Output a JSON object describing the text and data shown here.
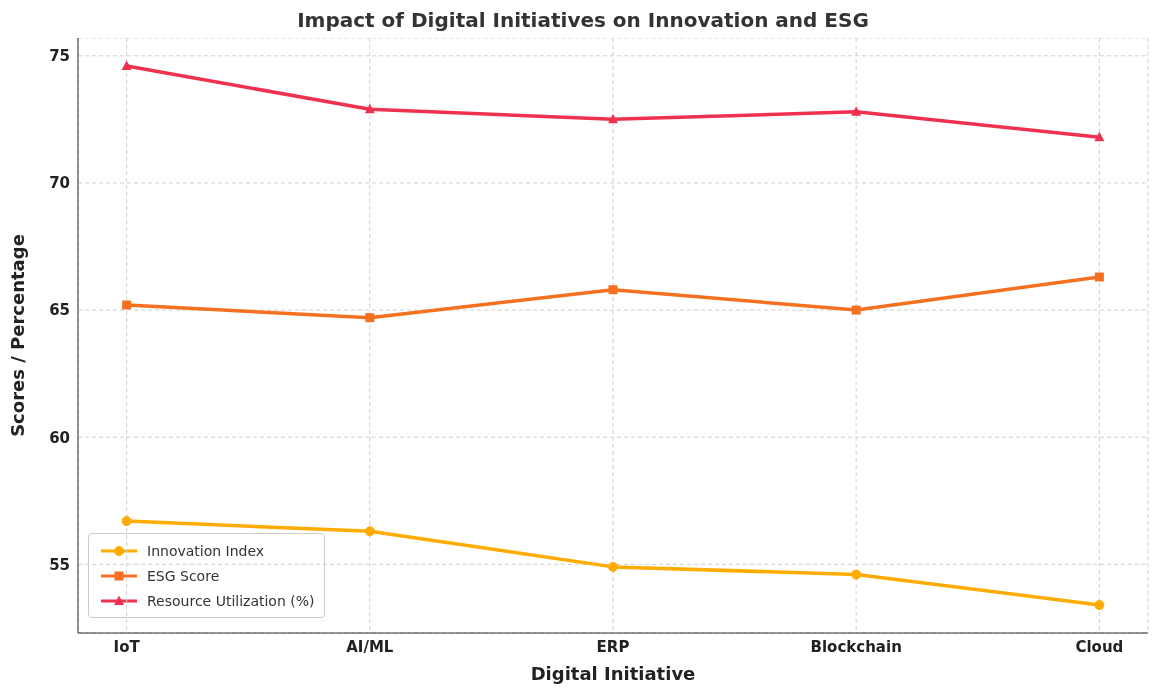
{
  "chart_data": {
    "type": "line",
    "title": "Impact of Digital Initiatives on Innovation and ESG",
    "xlabel": "Digital Initiative",
    "ylabel": "Scores / Percentage",
    "categories": [
      "IoT",
      "AI/ML",
      "ERP",
      "Blockchain",
      "Cloud"
    ],
    "series": [
      {
        "name": "Innovation Index",
        "color": "#ffab00",
        "marker": "circle",
        "values": [
          56.7,
          56.3,
          54.9,
          54.6,
          53.4
        ]
      },
      {
        "name": "ESG Score",
        "color": "#f5701f",
        "marker": "square",
        "values": [
          65.2,
          64.7,
          65.8,
          65.0,
          66.3
        ]
      },
      {
        "name": "Resource Utilization (%)",
        "color": "#f0304f",
        "marker": "triangle",
        "values": [
          74.6,
          72.9,
          72.5,
          72.8,
          71.8
        ]
      }
    ],
    "ylim": [
      52.3,
      75.7
    ],
    "yticks": [
      55,
      60,
      65,
      70,
      75
    ],
    "grid": true,
    "legend": "bottom left",
    "line_style": "solid"
  }
}
